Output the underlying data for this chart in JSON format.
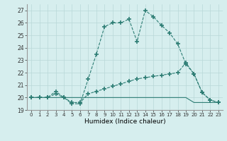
{
  "line1_x": [
    0,
    1,
    2,
    3,
    4,
    5,
    6,
    7,
    8,
    9,
    10,
    11,
    12,
    13,
    14,
    15,
    16,
    17,
    18,
    19,
    20,
    21,
    22,
    23
  ],
  "line1_y": [
    20.0,
    20.0,
    20.0,
    20.5,
    20.0,
    19.5,
    19.5,
    21.5,
    23.5,
    25.7,
    26.0,
    26.0,
    26.3,
    24.5,
    27.0,
    26.5,
    25.8,
    25.2,
    24.3,
    22.7,
    21.9,
    20.4,
    19.8,
    19.6
  ],
  "line2_x": [
    0,
    1,
    2,
    3,
    4,
    5,
    6,
    7,
    8,
    9,
    10,
    11,
    12,
    13,
    14,
    15,
    16,
    17,
    18,
    19,
    20,
    21,
    22,
    23
  ],
  "line2_y": [
    20.0,
    20.0,
    20.0,
    20.3,
    20.0,
    19.6,
    19.6,
    20.3,
    20.5,
    20.7,
    20.9,
    21.1,
    21.3,
    21.5,
    21.6,
    21.7,
    21.8,
    21.9,
    22.0,
    22.8,
    21.9,
    20.4,
    19.8,
    19.6
  ],
  "line3_x": [
    0,
    19,
    20,
    21,
    22,
    23
  ],
  "line3_y": [
    20.0,
    20.0,
    19.6,
    19.6,
    19.6,
    19.6
  ],
  "line_color": "#2d7d74",
  "bg_color": "#d6eeee",
  "grid_color": "#b8d8d8",
  "xlabel": "Humidex (Indice chaleur)",
  "ylim": [
    19,
    27.5
  ],
  "xlim": [
    -0.5,
    23.5
  ],
  "yticks": [
    19,
    20,
    21,
    22,
    23,
    24,
    25,
    26,
    27
  ],
  "xticks": [
    0,
    1,
    2,
    3,
    4,
    5,
    6,
    7,
    8,
    9,
    10,
    11,
    12,
    13,
    14,
    15,
    16,
    17,
    18,
    19,
    20,
    21,
    22,
    23
  ]
}
